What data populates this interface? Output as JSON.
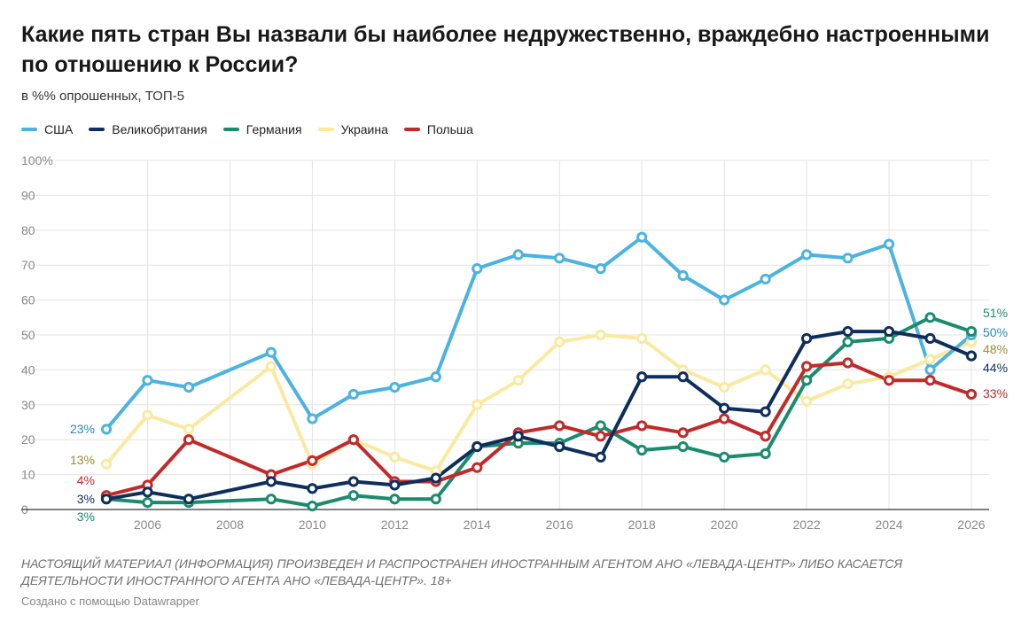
{
  "title": "Какие пять стран Вы назвали бы наиболее недружественно, враждебно настроенными по отношению к России?",
  "subtitle": "в %% опрошенных, ТОП-5",
  "note": "НАСТОЯЩИЙ МАТЕРИАЛ (ИНФОРМАЦИЯ) ПРОИЗВЕДЕН И РАСПРОСТРАНЕН ИНОСТРАННЫМ АГЕНТОМ АНО «ЛЕВАДА-ЦЕНТР» ЛИБО КАСАЕТСЯ ДЕЯТЕЛЬНОСТИ ИНОСТРАННОГО АГЕНТА АНО «ЛЕВАДА-ЦЕНТР». 18+",
  "credit": "Создано с помощью Datawrapper",
  "chart_data": {
    "type": "line",
    "title": "Какие пять стран Вы назвали бы наиболее недружественно, враждебно настроенными по отношению к России?",
    "xlim": [
      2005,
      2026
    ],
    "ylim": [
      0,
      100
    ],
    "x_ticks": [
      2006,
      2008,
      2010,
      2012,
      2014,
      2016,
      2018,
      2020,
      2022,
      2024,
      2026
    ],
    "y_ticks": [
      {
        "value": 0,
        "label": "0"
      },
      {
        "value": 10,
        "label": "10"
      },
      {
        "value": 20,
        "label": "20"
      },
      {
        "value": 30,
        "label": "30"
      },
      {
        "value": 40,
        "label": "40"
      },
      {
        "value": 50,
        "label": "50"
      },
      {
        "value": 60,
        "label": "60"
      },
      {
        "value": 70,
        "label": "70"
      },
      {
        "value": 80,
        "label": "80"
      },
      {
        "value": 90,
        "label": "90"
      },
      {
        "value": 100,
        "label": "100%"
      }
    ],
    "grid": true,
    "legend_position": "top-left",
    "series": [
      {
        "name": "США",
        "color": "#4cb3e0",
        "points": [
          [
            2005,
            23
          ],
          [
            2006,
            37
          ],
          [
            2007,
            35
          ],
          [
            2009,
            45
          ],
          [
            2010,
            26
          ],
          [
            2011,
            33
          ],
          [
            2012,
            35
          ],
          [
            2013,
            38
          ],
          [
            2014,
            69
          ],
          [
            2015,
            73
          ],
          [
            2016,
            72
          ],
          [
            2017,
            69
          ],
          [
            2018,
            78
          ],
          [
            2019,
            67
          ],
          [
            2020,
            60
          ],
          [
            2021,
            66
          ],
          [
            2022,
            73
          ],
          [
            2023,
            72
          ],
          [
            2024,
            76
          ],
          [
            2025,
            40
          ],
          [
            2026,
            50
          ]
        ],
        "start_label": "23%",
        "end_label": "50%"
      },
      {
        "name": "Великобритания",
        "color": "#0e2e5b",
        "points": [
          [
            2005,
            3
          ],
          [
            2006,
            5
          ],
          [
            2007,
            3
          ],
          [
            2009,
            8
          ],
          [
            2010,
            6
          ],
          [
            2011,
            8
          ],
          [
            2012,
            7
          ],
          [
            2013,
            9
          ],
          [
            2014,
            18
          ],
          [
            2015,
            21
          ],
          [
            2016,
            18
          ],
          [
            2017,
            15
          ],
          [
            2018,
            38
          ],
          [
            2019,
            38
          ],
          [
            2020,
            29
          ],
          [
            2021,
            28
          ],
          [
            2022,
            49
          ],
          [
            2023,
            51
          ],
          [
            2024,
            51
          ],
          [
            2025,
            49
          ],
          [
            2026,
            44
          ]
        ],
        "start_label": "3%",
        "end_label": "44%"
      },
      {
        "name": "Германия",
        "color": "#1a8c6d",
        "points": [
          [
            2005,
            3
          ],
          [
            2006,
            2
          ],
          [
            2007,
            2
          ],
          [
            2009,
            3
          ],
          [
            2010,
            1
          ],
          [
            2011,
            4
          ],
          [
            2012,
            3
          ],
          [
            2013,
            3
          ],
          [
            2014,
            18
          ],
          [
            2015,
            19
          ],
          [
            2016,
            19
          ],
          [
            2017,
            24
          ],
          [
            2018,
            17
          ],
          [
            2019,
            18
          ],
          [
            2020,
            15
          ],
          [
            2021,
            16
          ],
          [
            2022,
            37
          ],
          [
            2023,
            48
          ],
          [
            2024,
            49
          ],
          [
            2025,
            55
          ],
          [
            2026,
            51
          ]
        ],
        "start_label": "3%",
        "end_label": "51%"
      },
      {
        "name": "Украина",
        "color": "#fae9a0",
        "points": [
          [
            2005,
            13
          ],
          [
            2006,
            27
          ],
          [
            2007,
            23
          ],
          [
            2009,
            41
          ],
          [
            2010,
            13
          ],
          [
            2011,
            20
          ],
          [
            2012,
            15
          ],
          [
            2013,
            11
          ],
          [
            2014,
            30
          ],
          [
            2015,
            37
          ],
          [
            2016,
            48
          ],
          [
            2017,
            50
          ],
          [
            2018,
            49
          ],
          [
            2019,
            40
          ],
          [
            2020,
            35
          ],
          [
            2021,
            40
          ],
          [
            2022,
            31
          ],
          [
            2023,
            36
          ],
          [
            2024,
            38
          ],
          [
            2025,
            43
          ],
          [
            2026,
            48
          ]
        ],
        "start_label": "13%",
        "end_label": "48%"
      },
      {
        "name": "Польша",
        "color": "#c22a2a",
        "points": [
          [
            2005,
            4
          ],
          [
            2006,
            7
          ],
          [
            2007,
            20
          ],
          [
            2009,
            10
          ],
          [
            2010,
            14
          ],
          [
            2011,
            20
          ],
          [
            2012,
            8
          ],
          [
            2013,
            8
          ],
          [
            2014,
            12
          ],
          [
            2015,
            22
          ],
          [
            2016,
            24
          ],
          [
            2017,
            21
          ],
          [
            2018,
            24
          ],
          [
            2019,
            22
          ],
          [
            2020,
            26
          ],
          [
            2021,
            21
          ],
          [
            2022,
            41
          ],
          [
            2023,
            42
          ],
          [
            2024,
            37
          ],
          [
            2025,
            37
          ],
          [
            2026,
            33
          ]
        ],
        "start_label": "4%",
        "end_label": "33%"
      }
    ],
    "draw_order": [
      3,
      0,
      2,
      4,
      1
    ],
    "start_label_colors": [
      "#2a88b8",
      "#0e2e5b",
      "#1a8c6d",
      "#a08a3a",
      "#c22a2a"
    ],
    "end_label_colors": [
      "#2a88b8",
      "#0e2e5b",
      "#1a8c6d",
      "#a08a3a",
      "#c22a2a"
    ]
  }
}
